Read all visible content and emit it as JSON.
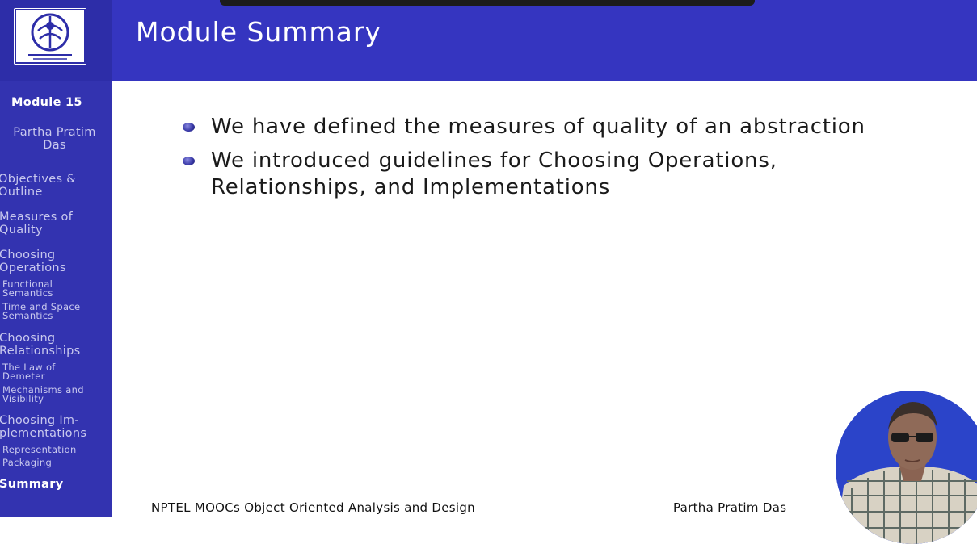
{
  "header": {
    "title": "Module Summary"
  },
  "sidebar": {
    "module": "Module 15",
    "author": [
      "Partha Pratim",
      "Das"
    ],
    "items": [
      {
        "lines": [
          "Objectives &",
          "Outline"
        ]
      },
      {
        "lines": [
          "Measures of",
          "Quality"
        ]
      },
      {
        "lines": [
          "Choosing",
          "Operations"
        ]
      },
      {
        "lines": [
          "Functional",
          "Semantics"
        ]
      },
      {
        "lines": [
          "Time and Space",
          "Semantics"
        ]
      },
      {
        "lines": [
          "Choosing",
          "Relationships"
        ]
      },
      {
        "lines": [
          "The Law of",
          "Demeter"
        ]
      },
      {
        "lines": [
          "Mechanisms and",
          "Visibility"
        ]
      },
      {
        "lines": [
          "Choosing Im-",
          "plementations"
        ]
      },
      {
        "lines": [
          "Representation"
        ]
      },
      {
        "lines": [
          "Packaging"
        ]
      },
      {
        "lines": [
          "Summary"
        ]
      }
    ]
  },
  "content": {
    "bullets": [
      {
        "lines": [
          "We have defined the measures of quality of an abstraction"
        ]
      },
      {
        "lines": [
          "We introduced guidelines for Choosing Operations,",
          "Relationships, and Implementations"
        ]
      }
    ]
  },
  "footer": {
    "course": "NPTEL MOOCs Object Oriented Analysis and Design",
    "author": "Partha Pratim Das"
  },
  "colors": {
    "sidebar": "#3333b0",
    "header": "#3535c0",
    "bullet": "#3a3aa8"
  },
  "icons": {
    "logo": "institute-logo-icon",
    "presenter": "presenter-video"
  }
}
